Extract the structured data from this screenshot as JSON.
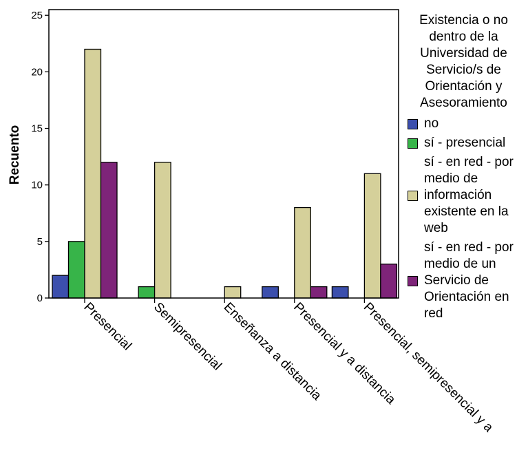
{
  "chart_data": {
    "type": "bar",
    "ylabel": "Recuento",
    "xlabel": "",
    "ylim": [
      0,
      25.5
    ],
    "yticks": [
      0,
      5,
      10,
      15,
      20,
      25
    ],
    "categories": [
      "Presencial",
      "Semipresencial",
      "Enseñanza a distancia",
      "Presencial y a distancia",
      "Presencial, semipresencial y a"
    ],
    "legend_title": "Existencia o no dentro de la Universidad de Servicio/s de Orientación y Asesoramiento",
    "legend_position": "right",
    "grid": false,
    "series": [
      {
        "name": "no",
        "color": "#3c4fad",
        "values": [
          2,
          0,
          0,
          1,
          1
        ]
      },
      {
        "name": "sí - presencial",
        "color": "#37b449",
        "values": [
          5,
          1,
          0,
          0,
          0
        ]
      },
      {
        "name": "sí - en red - por medio de información existente en la web",
        "color": "#d5d09a",
        "values": [
          22,
          12,
          1,
          8,
          11
        ]
      },
      {
        "name": "sí - en red - por medio de un Servicio de Orientación en red",
        "color": "#7e2479",
        "values": [
          12,
          0,
          0,
          1,
          3
        ]
      }
    ]
  }
}
